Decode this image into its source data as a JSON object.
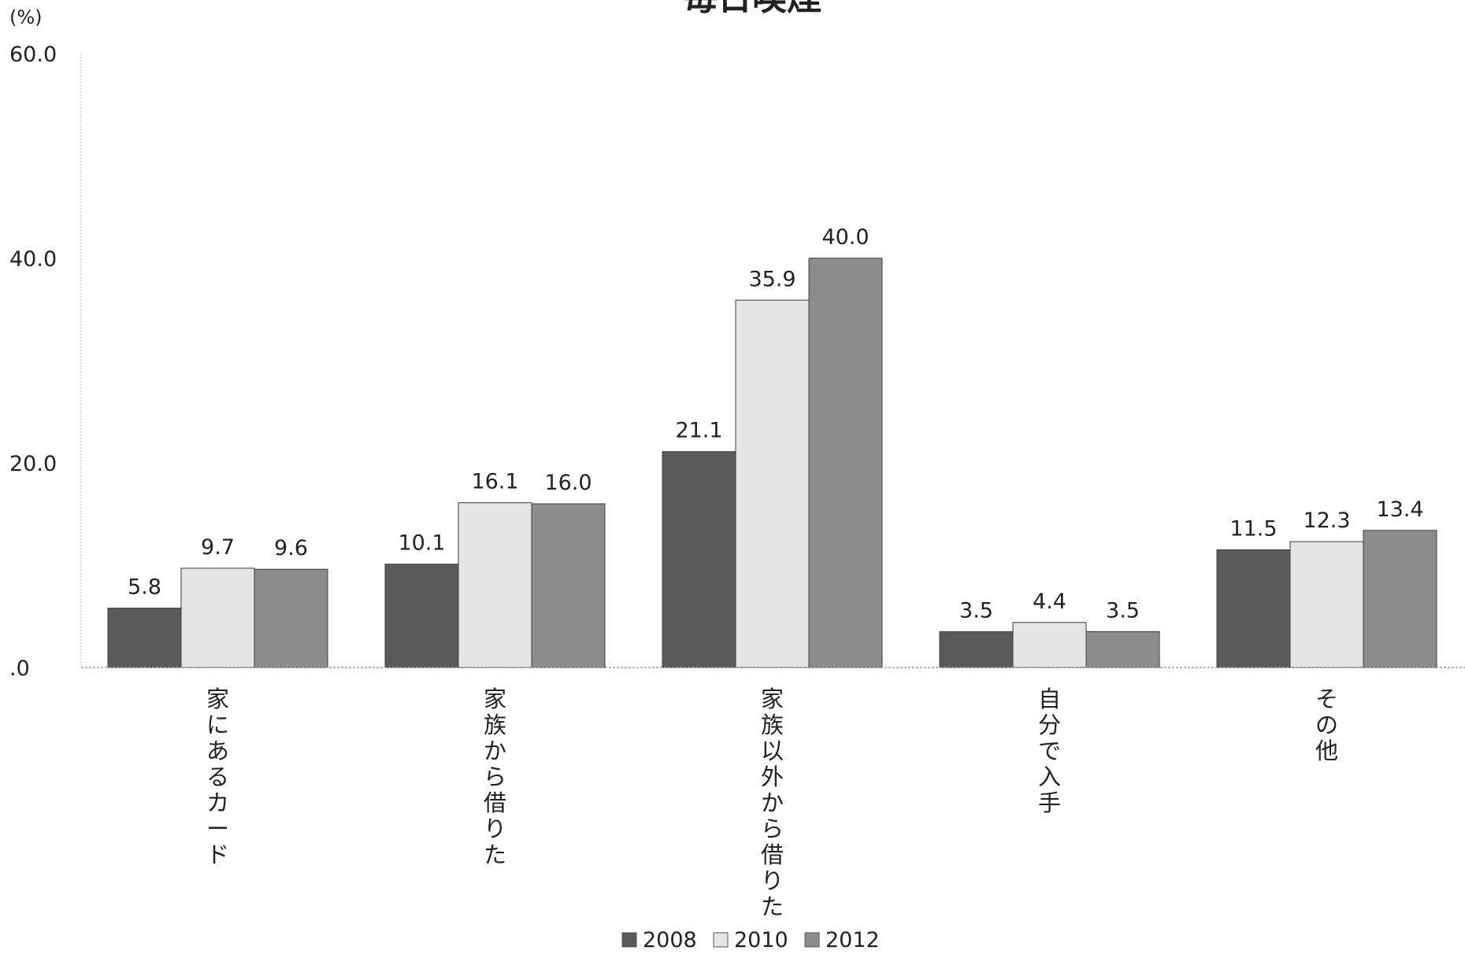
{
  "chart_data": {
    "type": "bar",
    "title": "毎日喫煙",
    "y_unit": "(%)",
    "ylim": [
      0,
      60
    ],
    "yticks": [
      "60.0",
      "40.0",
      "20.0",
      ".0"
    ],
    "ytick_values": [
      60,
      40,
      20,
      0
    ],
    "categories": [
      "家にあるカード",
      "家族から借りた",
      "家族以外から借りた",
      "自分で入手",
      "その他"
    ],
    "series": [
      {
        "name": "2008",
        "values": [
          5.8,
          10.1,
          21.1,
          3.5,
          11.5
        ],
        "labels": [
          "5.8",
          "10.1",
          "21.1",
          "3.5",
          "11.5"
        ],
        "color": "#5a5a5a"
      },
      {
        "name": "2010",
        "values": [
          9.7,
          16.1,
          35.9,
          4.4,
          12.3
        ],
        "labels": [
          "9.7",
          "16.1",
          "35.9",
          "4.4",
          "12.3"
        ],
        "color": "#e4e4e4"
      },
      {
        "name": "2012",
        "values": [
          9.6,
          16.0,
          40.0,
          3.5,
          13.4
        ],
        "labels": [
          "9.6",
          "16.0",
          "40.0",
          "3.5",
          "13.4"
        ],
        "color": "#8c8c8c"
      }
    ],
    "grid": false,
    "legend_position": "bottom"
  }
}
